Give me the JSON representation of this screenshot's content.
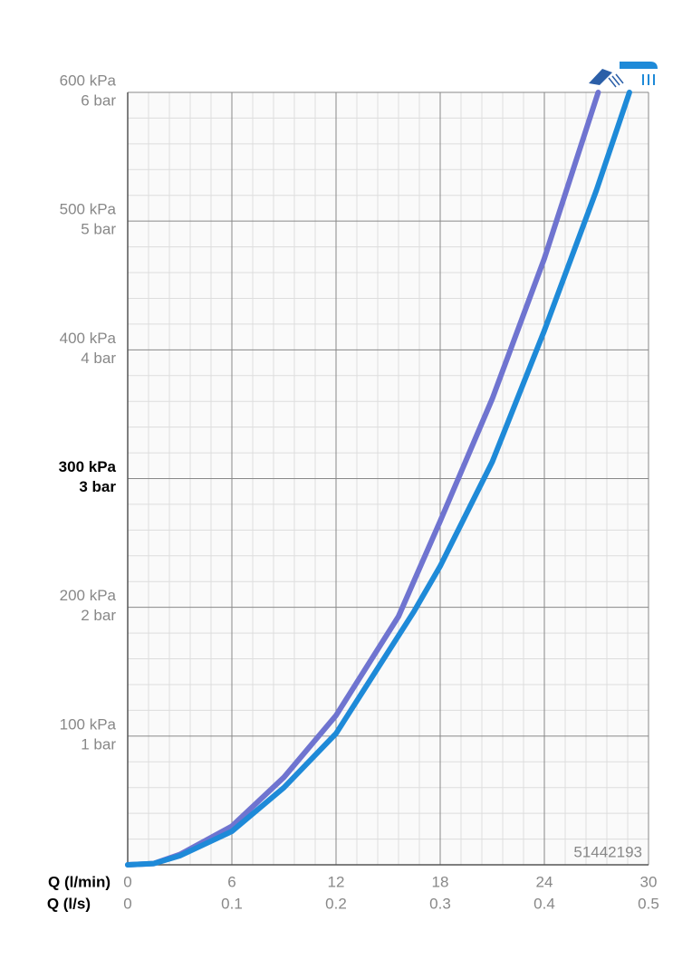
{
  "chart_data": {
    "type": "line",
    "xlabel": "Q (l/min)",
    "x2label": "Q (l/s)",
    "xlim": [
      0,
      30
    ],
    "xticks": [
      0,
      6,
      12,
      18,
      24,
      30
    ],
    "x2lim": [
      0,
      0.5
    ],
    "x2ticks": [
      0,
      0.1,
      0.2,
      0.3,
      0.4,
      0.5
    ],
    "ylim": [
      0,
      600
    ],
    "yticks": [
      {
        "value": 100,
        "label": "100 kPa"
      },
      {
        "value": 200,
        "label": "200 kPa"
      },
      {
        "value": 300,
        "label": "300 kPa"
      },
      {
        "value": 400,
        "label": "400 kPa"
      },
      {
        "value": 500,
        "label": "500 kPa"
      },
      {
        "value": 600,
        "label": "600 kPa"
      }
    ],
    "y2lim": [
      0,
      6
    ],
    "y2ticks": [
      {
        "value": 1,
        "label": "1 bar"
      },
      {
        "value": 2,
        "label": "2 bar"
      },
      {
        "value": 3,
        "label": "3 bar"
      },
      {
        "value": 4,
        "label": "4 bar"
      },
      {
        "value": 5,
        "label": "5 bar"
      },
      {
        "value": 6,
        "label": "6 bar"
      }
    ],
    "highlight_ytick": 300,
    "grid": true,
    "minor_grid_divisions": 5,
    "annotation": "51442193",
    "series": [
      {
        "color": "#6f74d0",
        "x": [
          0,
          1.5,
          3,
          6,
          9,
          12,
          15.6,
          18,
          21,
          24,
          27.1
        ],
        "values": [
          0,
          1,
          8,
          30,
          68,
          116,
          193,
          267,
          362,
          471,
          600
        ]
      },
      {
        "color": "#1e8ad8",
        "x": [
          0,
          1.5,
          3,
          6,
          9,
          12,
          16.5,
          18,
          21,
          24,
          27,
          28.9
        ],
        "values": [
          0,
          1,
          7,
          26,
          60,
          102,
          197,
          232,
          313,
          415,
          524,
          600
        ]
      }
    ]
  }
}
